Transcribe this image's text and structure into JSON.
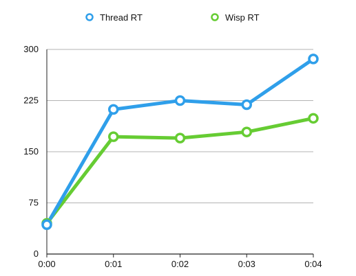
{
  "chart_data": {
    "type": "line",
    "x": [
      "0:00",
      "0:01",
      "0:02",
      "0:03",
      "0:04"
    ],
    "y_ticks": [
      "0",
      "75",
      "150",
      "225",
      "300"
    ],
    "ylim": [
      0,
      300
    ],
    "grid": true,
    "legend_position": "top-center",
    "series": [
      {
        "name": "Thread RT",
        "color": "#2f9fea",
        "values": [
          43,
          212,
          225,
          219,
          286
        ]
      },
      {
        "name": "Wisp RT",
        "color": "#66cc33",
        "values": [
          45,
          172,
          170,
          179,
          199
        ]
      }
    ]
  }
}
